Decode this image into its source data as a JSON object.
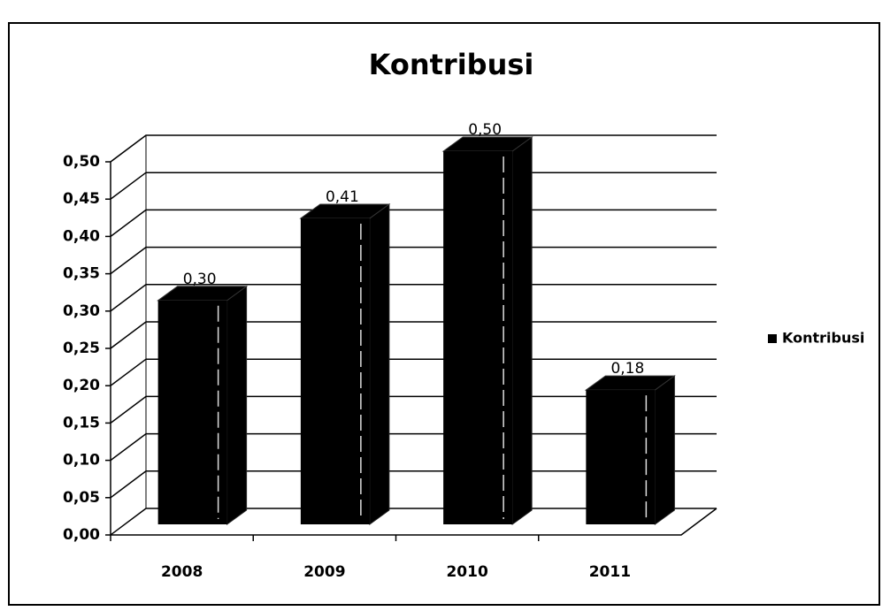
{
  "chart_data": {
    "type": "bar3d",
    "title": "Kontribusi",
    "categories": [
      "2008",
      "2009",
      "2010",
      "2011"
    ],
    "series": [
      {
        "name": "Kontribusi",
        "color": "#000000",
        "values": [
          0.3,
          0.41,
          0.5,
          0.18
        ],
        "value_labels": [
          "0,30",
          "0,41",
          "0,50",
          "0,18"
        ]
      }
    ],
    "ylim": [
      0,
      0.5
    ],
    "yticks": [
      {
        "value": 0,
        "label": "0,00"
      },
      {
        "value": 0.05,
        "label": "0,05"
      },
      {
        "value": 0.1,
        "label": "0,10"
      },
      {
        "value": 0.15,
        "label": "0,15"
      },
      {
        "value": 0.2,
        "label": "0,20"
      },
      {
        "value": 0.25,
        "label": "0,25"
      },
      {
        "value": 0.3,
        "label": "0,30"
      },
      {
        "value": 0.35,
        "label": "0,35"
      },
      {
        "value": 0.4,
        "label": "0,40"
      },
      {
        "value": 0.45,
        "label": "0,45"
      },
      {
        "value": 0.5,
        "label": "0,50"
      }
    ],
    "grid": true,
    "legend": "right"
  }
}
